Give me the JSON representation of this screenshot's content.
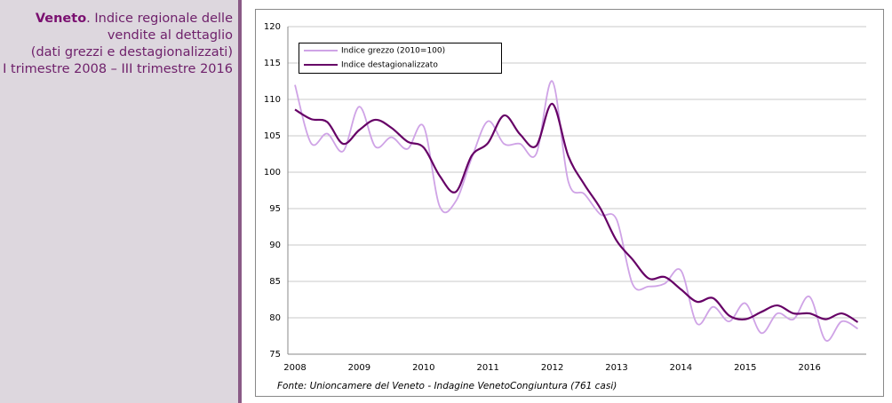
{
  "caption": {
    "heading": "Veneto",
    "lines": [
      ". Indice regionale delle",
      "vendite al dettaglio",
      "(dati grezzi e destagionalizzati)",
      "I trimestre 2008 – III trimestre 2016"
    ]
  },
  "chart_data": {
    "type": "line",
    "source": "Fonte: Unioncamere del Veneto - Indagine VenetoCongiuntura (761 casi)",
    "categories": [
      "2008",
      null,
      null,
      null,
      "2009",
      null,
      null,
      null,
      "2010",
      null,
      null,
      null,
      "2011",
      null,
      null,
      null,
      "2012",
      null,
      null,
      null,
      "2013",
      null,
      null,
      null,
      "2014",
      null,
      null,
      null,
      "2015",
      null,
      null,
      null,
      "2016",
      null,
      null,
      null
    ],
    "series": [
      {
        "name": "Indice grezzo (2010=100)",
        "color": "#cfa3e6",
        "values": [
          112,
          104,
          105.3,
          102.9,
          109,
          103.5,
          104.8,
          103.2,
          106.3,
          95.3,
          96,
          102,
          107,
          103.9,
          103.9,
          102.5,
          112.5,
          98.7,
          97,
          94.2,
          93.5,
          84.6,
          84.3,
          84.7,
          86.5,
          79.2,
          81.5,
          79.5,
          82,
          77.9,
          80.6,
          79.8,
          82.9,
          76.9,
          79.5,
          78.5
        ]
      },
      {
        "name": "Indice destagionalizzato",
        "color": "#660066",
        "values": [
          108.6,
          107.3,
          106.9,
          103.9,
          105.8,
          107.2,
          106.1,
          104.2,
          103.4,
          99.5,
          97.3,
          102.3,
          104,
          107.8,
          105.2,
          103.6,
          109.4,
          102.2,
          98.3,
          95,
          90.6,
          88,
          85.4,
          85.6,
          83.9,
          82.2,
          82.7,
          80.3,
          79.8,
          80.8,
          81.7,
          80.6,
          80.6,
          79.8,
          80.6,
          79.4
        ]
      }
    ],
    "ylim": [
      75,
      120
    ],
    "yticks": [
      75,
      80,
      85,
      90,
      95,
      100,
      105,
      110,
      115,
      120
    ],
    "grid": true,
    "legend": "top-left"
  }
}
